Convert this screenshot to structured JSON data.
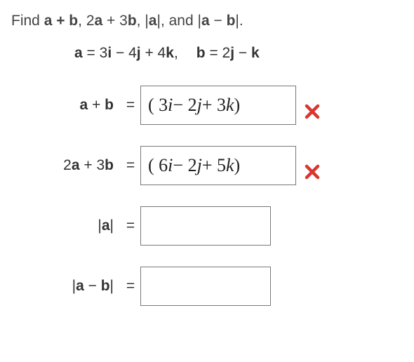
{
  "prompt": {
    "prefix": "Find  ",
    "terms": [
      "a + b",
      "2a + 3b",
      "|a|",
      "|a − b|"
    ],
    "sep": ", ",
    "and": ", and ",
    "suffix": "."
  },
  "given": {
    "a_label": "a",
    "a_eq": " = ",
    "a_rhs_parts": [
      "3",
      "i",
      " − 4",
      "j",
      " + 4",
      "k",
      ","
    ],
    "b_label": "b",
    "b_eq": " = ",
    "b_rhs_parts": [
      "2",
      "j",
      " − ",
      "k"
    ]
  },
  "rows": [
    {
      "label_parts": [
        "a",
        " + ",
        "b"
      ],
      "value_parts": [
        "( 3",
        "i",
        " − 2",
        "j",
        " + 3",
        "k",
        " )"
      ],
      "mark": "wrong",
      "box": "big"
    },
    {
      "label_parts": [
        "2",
        "a",
        " + 3",
        "b"
      ],
      "value_parts": [
        "( 6",
        "i",
        " − 2",
        "j",
        " + 5",
        "k",
        " )"
      ],
      "mark": "wrong",
      "box": "big"
    },
    {
      "label_parts": [
        "|",
        "a",
        "|"
      ],
      "value_parts": [],
      "mark": null,
      "box": "small"
    },
    {
      "label_parts": [
        "|",
        "a",
        " − ",
        "b",
        "|"
      ],
      "value_parts": [],
      "mark": null,
      "box": "small"
    }
  ],
  "eq": "=",
  "colors": {
    "wrong": "#d9362f",
    "border": "#777777",
    "text": "#333333"
  }
}
